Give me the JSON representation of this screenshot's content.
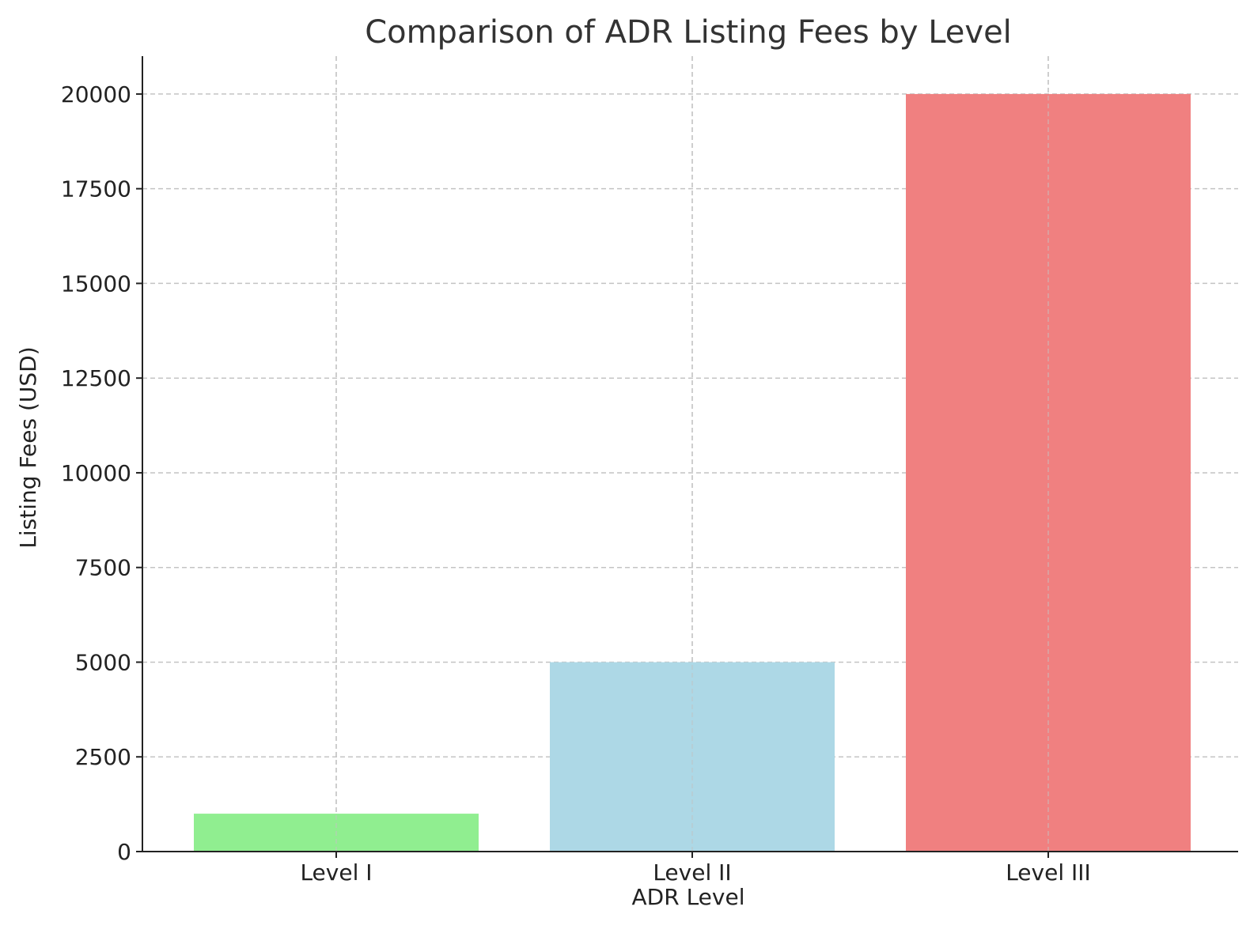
{
  "chart_data": {
    "type": "bar",
    "title": "Comparison of ADR Listing Fees by Level",
    "xlabel": "ADR Level",
    "ylabel": "Listing Fees (USD)",
    "categories": [
      "Level I",
      "Level II",
      "Level III"
    ],
    "values": [
      1000,
      5000,
      20000
    ],
    "colors": [
      "#90ee90",
      "#add8e6",
      "#f08080"
    ],
    "ylim": [
      0,
      21000
    ],
    "yticks": [
      0,
      2500,
      5000,
      7500,
      10000,
      12500,
      15000,
      17500,
      20000
    ],
    "grid": true
  }
}
